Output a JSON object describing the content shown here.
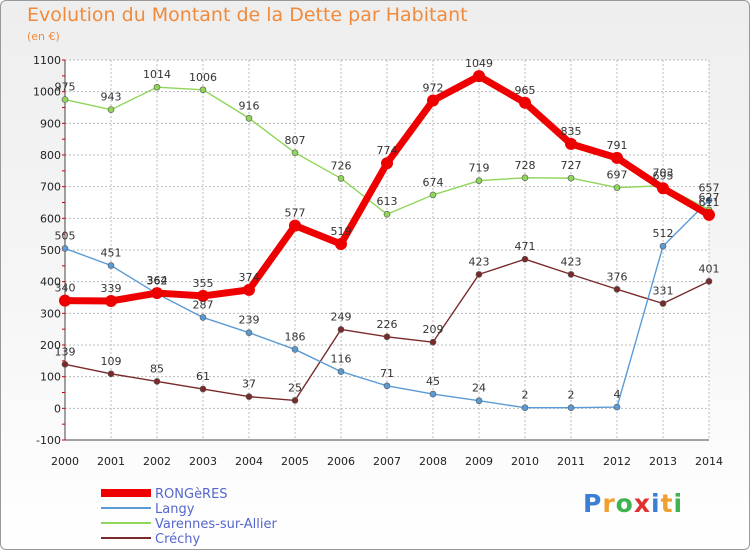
{
  "chart_data": {
    "type": "line",
    "title": "Evolution du Montant de la Dette par Habitant",
    "subtitle": "(en €)",
    "x": [
      "2000",
      "2001",
      "2002",
      "2003",
      "2004",
      "2005",
      "2006",
      "2007",
      "2008",
      "2009",
      "2010",
      "2011",
      "2012",
      "2013",
      "2014"
    ],
    "ylim": [
      -100,
      1100
    ],
    "yticks": [
      -100,
      0,
      100,
      200,
      300,
      400,
      500,
      600,
      700,
      800,
      900,
      1000,
      1100
    ],
    "grid": true,
    "legend_position": "bottom-left",
    "series": [
      {
        "name": "RONGèRES",
        "color": "#ee0000",
        "values": [
          340,
          339,
          364,
          355,
          374,
          577,
          519,
          774,
          972,
          1049,
          965,
          835,
          791,
          695,
          611
        ]
      },
      {
        "name": "Langy",
        "color": "#5b9bd5",
        "values": [
          505,
          451,
          362,
          287,
          239,
          186,
          116,
          71,
          45,
          24,
          2,
          2,
          4,
          512,
          657
        ]
      },
      {
        "name": "Varennes-sur-Allier",
        "color": "#8fd65a",
        "values": [
          975,
          943,
          1014,
          1006,
          916,
          807,
          726,
          613,
          674,
          719,
          728,
          727,
          697,
          703,
          627
        ]
      },
      {
        "name": "Créchy",
        "color": "#7a2a2a",
        "values": [
          139,
          109,
          85,
          61,
          37,
          25,
          249,
          226,
          209,
          423,
          471,
          423,
          376,
          331,
          401
        ]
      }
    ]
  },
  "logo": {
    "letters": [
      "P",
      "r",
      "o",
      "x",
      "i",
      "t",
      "i"
    ],
    "colors": [
      "#3a7fd5",
      "#f0a030",
      "#3fb34f",
      "#e03030",
      "#3a7fd5",
      "#f0a030",
      "#3fb34f"
    ]
  }
}
